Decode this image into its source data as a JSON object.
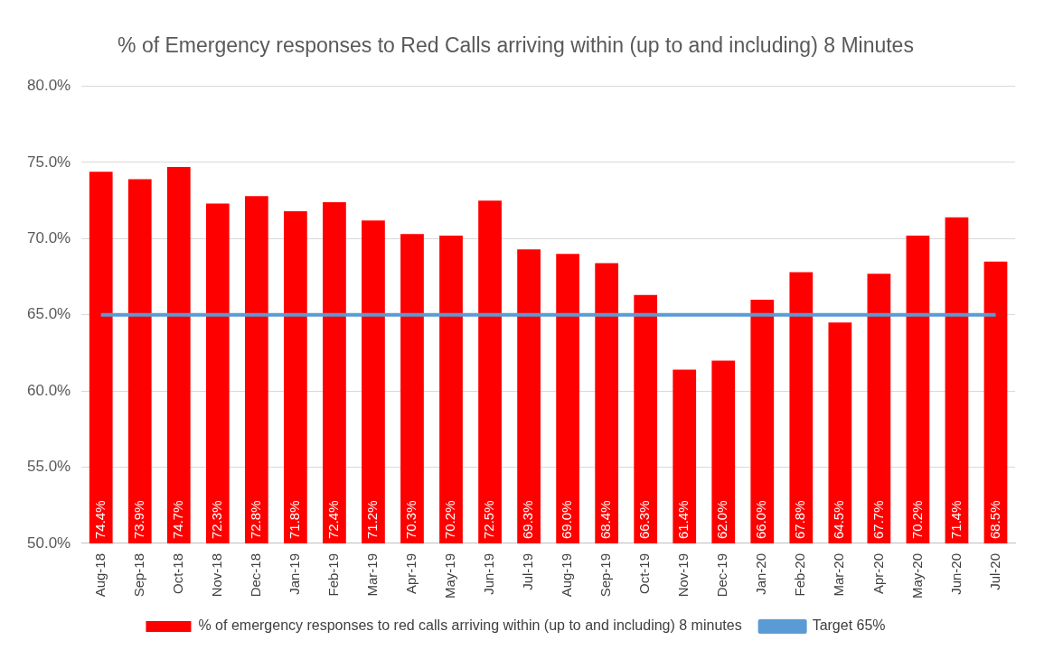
{
  "chart_data": {
    "type": "bar",
    "title": "% of Emergency responses to Red Calls arriving within (up to and including) 8 Minutes",
    "categories": [
      "Aug-18",
      "Sep-18",
      "Oct-18",
      "Nov-18",
      "Dec-18",
      "Jan-19",
      "Feb-19",
      "Mar-19",
      "Apr-19",
      "May-19",
      "Jun-19",
      "Jul-19",
      "Aug-19",
      "Sep-19",
      "Oct-19",
      "Nov-19",
      "Dec-19",
      "Jan-20",
      "Feb-20",
      "Mar-20",
      "Apr-20",
      "May-20",
      "Jun-20",
      "Jul-20"
    ],
    "series": [
      {
        "name": "% of emergency responses to red calls arriving within (up to and including) 8 minutes",
        "color": "#ff0000",
        "values": [
          74.4,
          73.9,
          74.7,
          72.3,
          72.8,
          71.8,
          72.4,
          71.2,
          70.3,
          70.2,
          72.5,
          69.3,
          69.0,
          68.4,
          66.3,
          61.4,
          62.0,
          66.0,
          67.8,
          64.5,
          67.7,
          70.2,
          71.4,
          68.5
        ],
        "value_labels": [
          "74.4%",
          "73.9%",
          "74.7%",
          "72.3%",
          "72.8%",
          "71.8%",
          "72.4%",
          "71.2%",
          "70.3%",
          "70.2%",
          "72.5%",
          "69.3%",
          "69.0%",
          "68.4%",
          "66.3%",
          "61.4%",
          "62.0%",
          "66.0%",
          "67.8%",
          "64.5%",
          "67.7%",
          "70.2%",
          "71.4%",
          "68.5%"
        ]
      },
      {
        "name": "Target 65%",
        "type": "line",
        "color": "#5b9bd5",
        "values": [
          65,
          65,
          65,
          65,
          65,
          65,
          65,
          65,
          65,
          65,
          65,
          65,
          65,
          65,
          65,
          65,
          65,
          65,
          65,
          65,
          65,
          65,
          65,
          65
        ]
      }
    ],
    "ylim": [
      50,
      80
    ],
    "yticks": [
      {
        "value": 50,
        "label": "50.0%"
      },
      {
        "value": 55,
        "label": "55.0%"
      },
      {
        "value": 60,
        "label": "60.0%"
      },
      {
        "value": 65,
        "label": "65.0%"
      },
      {
        "value": 70,
        "label": "70.0%"
      },
      {
        "value": 75,
        "label": "75.0%"
      },
      {
        "value": 80,
        "label": "80.0%"
      }
    ],
    "grid": "y",
    "legend": "bottom"
  }
}
